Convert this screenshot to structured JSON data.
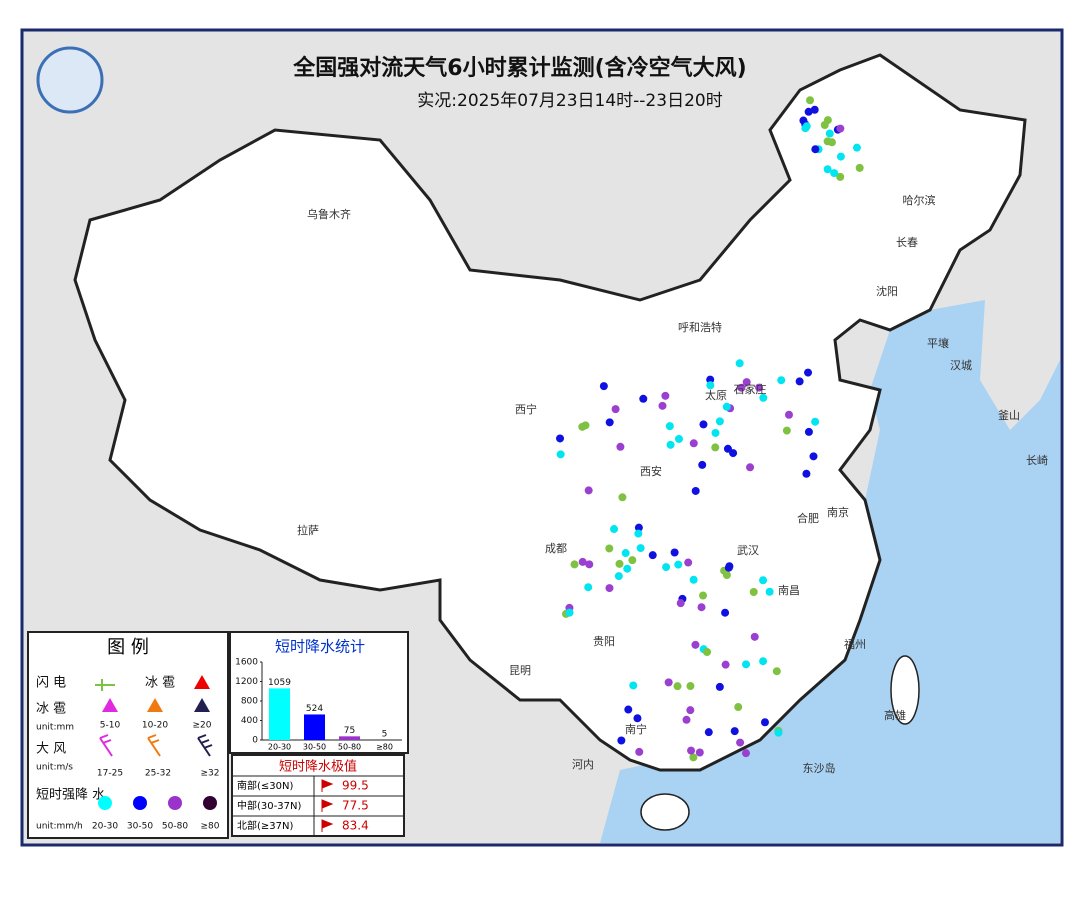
{
  "header": {
    "title": "全国强对流天气6小时累计监测(含冷空气大风)",
    "subtitle": "实况:2025年07月23日14时--23日20时"
  },
  "cities": [
    "乌鲁木齐",
    "哈尔滨",
    "长春",
    "沈阳",
    "平壤",
    "汉城",
    "釜山",
    "长崎",
    "呼和浩特",
    "太原",
    "石家庄",
    "西宁",
    "西安",
    "拉萨",
    "成都",
    "武汉",
    "合肥",
    "南京",
    "南昌",
    "贵阳",
    "昆明",
    "福州",
    "高雄",
    "南宁",
    "河内",
    "东沙岛"
  ],
  "legend": {
    "title": "图 例",
    "lightning": "闪 电",
    "hail_symbol": "冰 雹",
    "hail": {
      "label": "冰 雹",
      "unit": "unit:mm",
      "items": [
        "5-10",
        "10-20",
        "≥20"
      ]
    },
    "wind": {
      "label": "大 风",
      "unit": "unit:m/s",
      "items": [
        "17-25",
        "25-32",
        "≥32"
      ]
    },
    "rain": {
      "label": "短时强降 水",
      "unit": "unit:mm/h",
      "items": [
        "20-30",
        "30-50",
        "50-80",
        "≥80"
      ]
    }
  },
  "chart_data": {
    "type": "bar",
    "title": "短时降水统计",
    "categories": [
      "20-30",
      "30-50",
      "50-80",
      "≥80"
    ],
    "values": [
      1059,
      524,
      75,
      5
    ],
    "colors": [
      "#00ffff",
      "#0000ff",
      "#9933cc",
      "#330033"
    ],
    "ylim": [
      0,
      1600
    ],
    "yticks": [
      0,
      400,
      800,
      1200,
      1600
    ]
  },
  "extremes": {
    "title": "短时降水极值",
    "rows": [
      {
        "region": "南部(≤30N)",
        "value": 99.5
      },
      {
        "region": "中部(30-37N)",
        "value": 77.5
      },
      {
        "region": "北部(≥37N)",
        "value": 83.4
      }
    ]
  }
}
